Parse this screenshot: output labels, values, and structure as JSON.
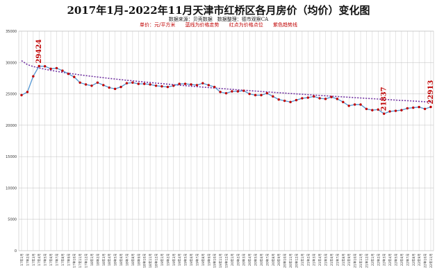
{
  "header": {
    "title": "2017年1月-2022年11月天津市红桥区各月房价（均价）变化图",
    "source": "数据来源：贝壳数据　数据整理：德市观察CA",
    "legend": [
      "单价：元/平方米",
      "蓝线为价格走势",
      "红点为价格点位",
      "紫色趋势线"
    ]
  },
  "chart_data": {
    "type": "line",
    "title": "2017年1月-2022年11月天津市红桥区各月房价（均价）变化图",
    "xlabel": "",
    "ylabel": "",
    "ylim": [
      0,
      35000
    ],
    "yticks": [
      0,
      5000,
      10000,
      15000,
      20000,
      25000,
      30000,
      35000
    ],
    "grid": "vertical and horizontal",
    "colors": {
      "line": "#5b9bd5",
      "marker": "#c00000",
      "trend": "#7030a0",
      "grid": "#bfbfbf"
    },
    "x": [
      "17年1月",
      "17年2月",
      "17年3月",
      "17年4月",
      "17年5月",
      "17年6月",
      "17年7月",
      "17年8月",
      "17年9月",
      "17年10月",
      "17年11月",
      "17年12月",
      "18年1月",
      "18年2月",
      "18年3月",
      "18年4月",
      "18年5月",
      "18年6月",
      "18年7月",
      "18年8月",
      "18年9月",
      "18年10月",
      "18年11月",
      "18年12月",
      "19年1月",
      "19年2月",
      "19年3月",
      "19年4月",
      "19年5月",
      "19年6月",
      "19年7月",
      "19年8月",
      "19年9月",
      "19年10月",
      "19年11月",
      "19年12月",
      "20年1月",
      "20年2月",
      "20年3月",
      "20年4月",
      "20年5月",
      "20年6月",
      "20年7月",
      "20年8月",
      "20年9月",
      "20年10月",
      "20年11月",
      "20年12月",
      "21年1月",
      "21年2月",
      "21年3月",
      "21年4月",
      "21年5月",
      "21年6月",
      "21年7月",
      "21年8月",
      "21年9月",
      "21年10月",
      "21年11月",
      "21年12月",
      "22年1月",
      "22年2月",
      "22年3月",
      "22年4月",
      "22年5月",
      "22年6月",
      "22年7月",
      "22年8月",
      "22年9月",
      "22年10月",
      "22年11月"
    ],
    "series": [
      {
        "name": "",
        "values": [
          24800,
          25300,
          27800,
          29424,
          29400,
          29000,
          29100,
          28700,
          28200,
          27700,
          26800,
          26500,
          26300,
          26800,
          26400,
          26000,
          25800,
          26100,
          26700,
          26800,
          26600,
          26600,
          26500,
          26300,
          26200,
          26100,
          26300,
          26600,
          26600,
          26500,
          26400,
          26700,
          26400,
          26100,
          25300,
          25100,
          25400,
          25400,
          25500,
          25000,
          24800,
          24800,
          25100,
          24600,
          24100,
          23900,
          23700,
          24000,
          24300,
          24400,
          24600,
          24300,
          24200,
          24500,
          24200,
          23700,
          23100,
          23300,
          23300,
          22600,
          22400,
          22500,
          21837,
          22200,
          22300,
          22400,
          22700,
          22800,
          22900,
          22600,
          22913
        ]
      },
      {
        "name": "",
        "type": "trend",
        "start": 30300,
        "end": 23700
      }
    ],
    "annotations": [
      {
        "text": "29424",
        "x": "17年4月",
        "value": 29424
      },
      {
        "text": "21837",
        "x": "22年3月",
        "value": 21837
      },
      {
        "text": "22913",
        "x": "22年11月",
        "value": 22913
      }
    ]
  }
}
